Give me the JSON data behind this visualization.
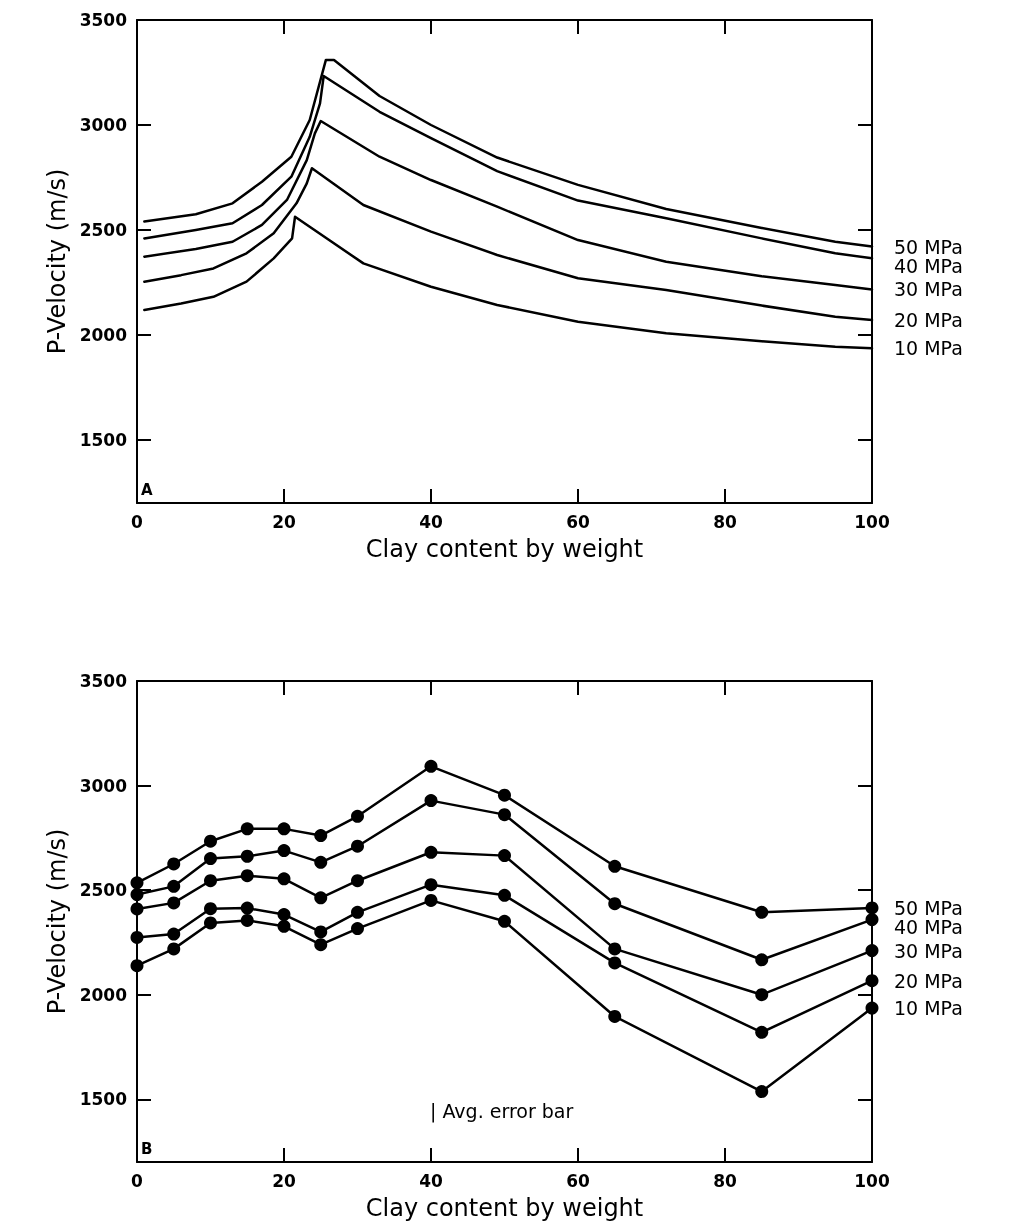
{
  "chart_data": [
    {
      "type": "line",
      "xlabel": "Clay content by weight",
      "ylabel": "P-Velocity (m/s)",
      "xlim": [
        0,
        100
      ],
      "xticks": [
        0,
        20,
        40,
        60,
        80,
        100
      ],
      "ylim": [
        1200,
        3500
      ],
      "yticks": [
        1500,
        2000,
        2500,
        3000,
        3500
      ],
      "grid": false,
      "legend": "right",
      "marker": "none",
      "line_style": "solid",
      "annotations": [
        "A"
      ],
      "series": [
        {
          "name": "50 MPa",
          "color": "#000000",
          "x": [
            1,
            8,
            13,
            17,
            21,
            23.5,
            25.7,
            26.8,
            33,
            40,
            49,
            60,
            72,
            85,
            95,
            100
          ],
          "values": [
            2540,
            2575,
            2627,
            2730,
            2849,
            3024,
            3310,
            3310,
            3138,
            3000,
            2845,
            2715,
            2600,
            2510,
            2444,
            2421
          ]
        },
        {
          "name": "40 MPa",
          "color": "#000000",
          "x": [
            1,
            8,
            13,
            17,
            21,
            23.5,
            24.9,
            25.4,
            33,
            40,
            49,
            60,
            72,
            85,
            95,
            100
          ],
          "values": [
            2460,
            2500,
            2532,
            2619,
            2754,
            2944,
            3103,
            3233,
            3063,
            2937,
            2780,
            2640,
            2556,
            2460,
            2389,
            2365
          ]
        },
        {
          "name": "30 MPa",
          "color": "#000000",
          "x": [
            1,
            8,
            13,
            17,
            20.4,
            23.1,
            24.2,
            25,
            33,
            40,
            49,
            60,
            72,
            85,
            95,
            100
          ],
          "values": [
            2373,
            2410,
            2444,
            2524,
            2643,
            2833,
            2960,
            3019,
            2849,
            2738,
            2611,
            2452,
            2349,
            2280,
            2238,
            2217
          ]
        },
        {
          "name": "20 MPa",
          "color": "#000000",
          "x": [
            1,
            6,
            10.4,
            14.9,
            18.6,
            21.7,
            23.1,
            23.8,
            30.8,
            40,
            49,
            60,
            72,
            85,
            95,
            100
          ],
          "values": [
            2254,
            2285,
            2317,
            2389,
            2484,
            2627,
            2722,
            2794,
            2619,
            2492,
            2381,
            2270,
            2214,
            2140,
            2087,
            2071
          ]
        },
        {
          "name": "10 MPa",
          "color": "#000000",
          "x": [
            1,
            6,
            10.4,
            14.9,
            18.6,
            21.1,
            21.5,
            30.8,
            40,
            49,
            60,
            72,
            85,
            95,
            100
          ],
          "values": [
            2119,
            2150,
            2182,
            2254,
            2365,
            2460,
            2563,
            2341,
            2230,
            2143,
            2063,
            2008,
            1970,
            1944,
            1937
          ]
        }
      ]
    },
    {
      "type": "line",
      "xlabel": "Clay content by weight",
      "ylabel": "P-Velocity (m/s)",
      "xlim": [
        0,
        100
      ],
      "xticks": [
        0,
        20,
        40,
        60,
        80,
        100
      ],
      "ylim": [
        1200,
        3500
      ],
      "yticks": [
        1500,
        2000,
        2500,
        3000,
        3500
      ],
      "grid": false,
      "legend": "right",
      "marker": "circle",
      "line_style": "solid",
      "annotations": [
        "B",
        "| Avg. error bar"
      ],
      "x": [
        0,
        5,
        10,
        15,
        20,
        25,
        30,
        40,
        50,
        65,
        85,
        100
      ],
      "series": [
        {
          "name": "50 MPa",
          "color": "#000000",
          "values": [
            2535,
            2625,
            2734,
            2793,
            2793,
            2761,
            2853,
            3092,
            2954,
            2614,
            2394,
            2415
          ]
        },
        {
          "name": "40 MPa",
          "color": "#000000",
          "values": [
            2479,
            2518,
            2651,
            2662,
            2689,
            2633,
            2710,
            2928,
            2861,
            2435,
            2167,
            2359
          ]
        },
        {
          "name": "30 MPa",
          "color": "#000000",
          "values": [
            2410,
            2439,
            2545,
            2569,
            2554,
            2463,
            2545,
            2681,
            2665,
            2219,
            2000,
            2211
          ]
        },
        {
          "name": "20 MPa",
          "color": "#000000",
          "values": [
            2274,
            2290,
            2411,
            2414,
            2383,
            2300,
            2394,
            2526,
            2475,
            2152,
            1820,
            2067
          ]
        },
        {
          "name": "10 MPa",
          "color": "#000000",
          "values": [
            2139,
            2219,
            2343,
            2355,
            2327,
            2239,
            2316,
            2451,
            2351,
            1896,
            1537,
            1936
          ]
        }
      ]
    }
  ]
}
